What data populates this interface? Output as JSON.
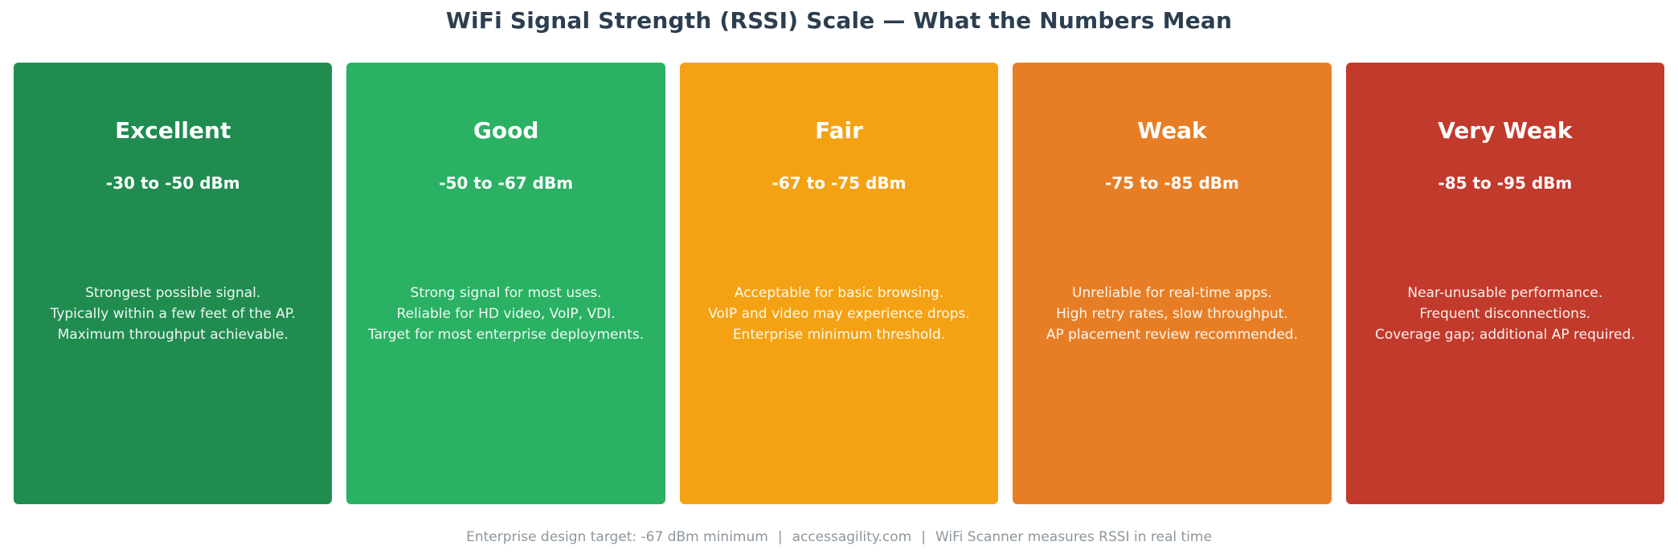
{
  "header": {
    "title": "WiFi Signal Strength (RSSI) Scale — What the Numbers Mean",
    "title_color": "#2c3e50"
  },
  "cards": [
    {
      "label": "Excellent",
      "range": "-30 to -50 dBm",
      "color": "#208c50",
      "description": [
        "Strongest possible signal.",
        "Typically within a few feet of the AP.",
        "Maximum throughput achievable."
      ]
    },
    {
      "label": "Good",
      "range": "-50 to -67 dBm",
      "color": "#2ab163",
      "description": [
        "Strong signal for most uses.",
        "Reliable for HD video, VoIP, VDI.",
        "Target for most enterprise deployments."
      ]
    },
    {
      "label": "Fair",
      "range": "-67 to -75 dBm",
      "color": "#f4a213",
      "description": [
        "Acceptable for basic browsing.",
        "VoIP and video may experience drops.",
        "Enterprise minimum threshold."
      ]
    },
    {
      "label": "Weak",
      "range": "-75 to -85 dBm",
      "color": "#e77e26",
      "description": [
        "Unreliable for real-time apps.",
        "High retry rates, slow throughput.",
        "AP placement review recommended."
      ]
    },
    {
      "label": "Very Weak",
      "range": "-85 to -95 dBm",
      "color": "#c23a2b",
      "description": [
        "Near-unusable performance.",
        "Frequent disconnections.",
        "Coverage gap; additional AP required."
      ]
    }
  ],
  "footer": {
    "separator": "|",
    "parts": [
      "Enterprise design target: -67 dBm minimum",
      "accessagility.com",
      "WiFi Scanner measures RSSI in real time"
    ]
  }
}
